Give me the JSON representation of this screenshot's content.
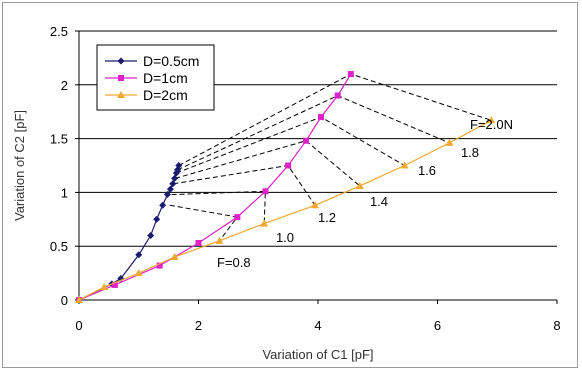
{
  "chart_data": {
    "type": "scatter",
    "xlabel": "Variation of C1 [pF]",
    "ylabel": "Variation of C2 [pF]",
    "xlim": [
      0,
      8
    ],
    "ylim": [
      0,
      2.5
    ],
    "x_ticks": [
      "0",
      "2",
      "4",
      "6",
      "8"
    ],
    "y_ticks": [
      "0",
      "0.5",
      "1",
      "1.5",
      "2",
      "2.5"
    ],
    "grid": "horizontal",
    "legend_position": "top-left",
    "series": [
      {
        "name": "D=0.5cm",
        "color": "#1a1a6e",
        "marker": "diamond",
        "x": [
          0,
          0.55,
          0.7,
          1.0,
          1.2,
          1.3,
          1.4,
          1.48,
          1.53,
          1.57,
          1.6,
          1.63,
          1.65,
          1.67
        ],
        "y": [
          0,
          0.15,
          0.2,
          0.42,
          0.6,
          0.75,
          0.88,
          0.98,
          1.03,
          1.08,
          1.13,
          1.18,
          1.21,
          1.25
        ]
      },
      {
        "name": "D=1cm",
        "color": "#e020c8",
        "marker": "square",
        "x": [
          0,
          0.6,
          1.35,
          2.0,
          2.65,
          3.12,
          3.5,
          3.8,
          4.05,
          4.33,
          4.55
        ],
        "y": [
          0,
          0.14,
          0.32,
          0.53,
          0.77,
          1.01,
          1.25,
          1.48,
          1.7,
          1.9,
          2.1
        ]
      },
      {
        "name": "D=2cm",
        "color": "#f0a830",
        "marker": "triangle",
        "x": [
          0,
          0.42,
          1.0,
          1.6,
          2.35,
          3.1,
          3.95,
          4.7,
          5.45,
          6.2,
          6.9
        ],
        "y": [
          0,
          0.12,
          0.25,
          0.4,
          0.55,
          0.71,
          0.88,
          1.06,
          1.25,
          1.46,
          1.67
        ]
      }
    ],
    "force_lines": [
      {
        "label": "F=0.8",
        "points": [
          [
            1.52,
            0.88
          ],
          [
            2.65,
            0.77
          ],
          [
            2.35,
            0.55
          ]
        ]
      },
      {
        "label": "1.0",
        "points": [
          [
            1.55,
            0.98
          ],
          [
            3.12,
            1.01
          ],
          [
            3.1,
            0.71
          ]
        ]
      },
      {
        "label": "1.2",
        "points": [
          [
            1.58,
            1.08
          ],
          [
            3.5,
            1.25
          ],
          [
            3.95,
            0.88
          ]
        ]
      },
      {
        "label": "1.4",
        "points": [
          [
            1.61,
            1.13
          ],
          [
            3.8,
            1.48
          ],
          [
            4.7,
            1.06
          ]
        ]
      },
      {
        "label": "1.6",
        "points": [
          [
            1.63,
            1.18
          ],
          [
            4.05,
            1.7
          ],
          [
            5.45,
            1.25
          ]
        ]
      },
      {
        "label": "1.8",
        "points": [
          [
            1.65,
            1.21
          ],
          [
            4.33,
            1.9
          ],
          [
            6.2,
            1.46
          ]
        ]
      },
      {
        "label": "F=2.0N",
        "points": [
          [
            1.67,
            1.25
          ],
          [
            4.55,
            2.1
          ],
          [
            6.9,
            1.67
          ]
        ]
      }
    ]
  }
}
